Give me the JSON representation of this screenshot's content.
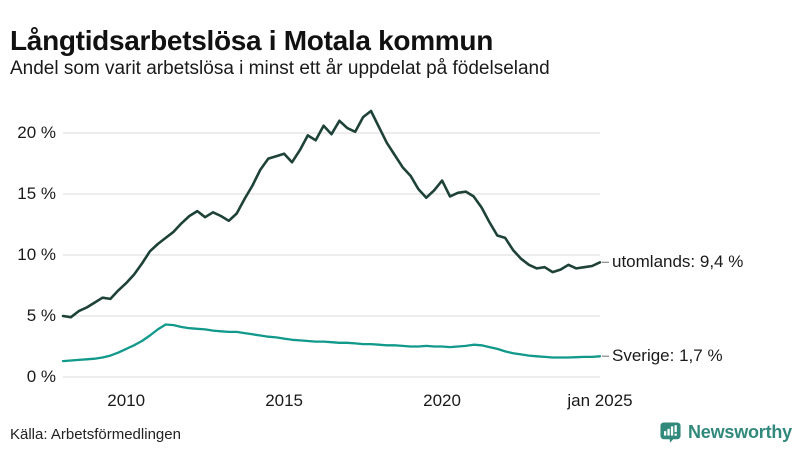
{
  "header": {
    "title": "Långtidsarbetslösa i Motala kommun",
    "subtitle": "Andel som varit arbetslösa i minst ett år uppdelat på födelseland"
  },
  "footer": {
    "source": "Källa: Arbetsförmedlingen",
    "brand": "Newsworthy"
  },
  "colors": {
    "utomlands_line": "#1e4238",
    "sverige_line": "#11998b",
    "grid": "#e2e2e2",
    "text": "#1a1a1a",
    "label_dash": "#999999",
    "brand_teal": "#31897c"
  },
  "chart_data": {
    "type": "line",
    "title": "Långtidsarbetslösa i Motala kommun",
    "subtitle": "Andel som varit arbetslösa i minst ett år uppdelat på födelseland",
    "xlabel": "",
    "ylabel": "",
    "xlim": [
      2008,
      2025
    ],
    "ylim": [
      0,
      22.4
    ],
    "grid": "horizontal",
    "legend_position": "end-of-line-labels",
    "y_ticks": [
      {
        "label": "0 %",
        "value": 0
      },
      {
        "label": "5 %",
        "value": 5
      },
      {
        "label": "10 %",
        "value": 10
      },
      {
        "label": "15 %",
        "value": 15
      },
      {
        "label": "20 %",
        "value": 20
      }
    ],
    "x_ticks": [
      {
        "label": "2010",
        "year": 2010
      },
      {
        "label": "2015",
        "year": 2015
      },
      {
        "label": "2020",
        "year": 2020
      },
      {
        "label": "jan 2025",
        "year": 2025
      }
    ],
    "x": [
      2008,
      2008.25,
      2008.5,
      2008.75,
      2009,
      2009.25,
      2009.5,
      2009.75,
      2010,
      2010.25,
      2010.5,
      2010.75,
      2011,
      2011.25,
      2011.5,
      2011.75,
      2012,
      2012.25,
      2012.5,
      2012.75,
      2013,
      2013.25,
      2013.5,
      2013.75,
      2014,
      2014.25,
      2014.5,
      2014.75,
      2015,
      2015.25,
      2015.5,
      2015.75,
      2016,
      2016.25,
      2016.5,
      2016.75,
      2017,
      2017.25,
      2017.5,
      2017.75,
      2018,
      2018.25,
      2018.5,
      2018.75,
      2019,
      2019.25,
      2019.5,
      2019.75,
      2020,
      2020.25,
      2020.5,
      2020.75,
      2021,
      2021.25,
      2021.5,
      2021.75,
      2022,
      2022.25,
      2022.5,
      2022.75,
      2023,
      2023.25,
      2023.5,
      2023.75,
      2024,
      2024.25,
      2024.5,
      2024.75,
      2025
    ],
    "series": [
      {
        "name": "utomlands",
        "end_label": "utomlands: 9,4 %",
        "end_value": "9,4 %",
        "color": "#1e4238",
        "values": [
          5.0,
          4.9,
          5.4,
          5.7,
          6.1,
          6.5,
          6.4,
          7.1,
          7.7,
          8.4,
          9.3,
          10.3,
          10.9,
          11.4,
          11.9,
          12.6,
          13.2,
          13.6,
          13.1,
          13.5,
          13.2,
          12.8,
          13.4,
          14.6,
          15.7,
          17.0,
          17.9,
          18.1,
          18.3,
          17.6,
          18.6,
          19.8,
          19.4,
          20.6,
          19.9,
          21.0,
          20.4,
          20.1,
          21.3,
          21.8,
          20.5,
          19.2,
          18.2,
          17.2,
          16.5,
          15.4,
          14.7,
          15.3,
          16.1,
          14.8,
          15.1,
          15.2,
          14.8,
          13.9,
          12.7,
          11.6,
          11.4,
          10.4,
          9.7,
          9.2,
          8.9,
          9.0,
          8.6,
          8.8,
          9.2,
          8.9,
          9.0,
          9.1,
          9.4
        ]
      },
      {
        "name": "Sverige",
        "end_label": "Sverige: 1,7 %",
        "end_value": "1,7 %",
        "color": "#11998b",
        "values": [
          1.3,
          1.35,
          1.4,
          1.45,
          1.5,
          1.6,
          1.75,
          2.0,
          2.3,
          2.6,
          2.95,
          3.4,
          3.9,
          4.3,
          4.25,
          4.1,
          4.0,
          3.95,
          3.9,
          3.8,
          3.75,
          3.7,
          3.7,
          3.6,
          3.5,
          3.4,
          3.3,
          3.25,
          3.15,
          3.05,
          3.0,
          2.95,
          2.9,
          2.9,
          2.85,
          2.8,
          2.8,
          2.75,
          2.7,
          2.7,
          2.65,
          2.6,
          2.6,
          2.55,
          2.5,
          2.5,
          2.55,
          2.5,
          2.5,
          2.45,
          2.5,
          2.55,
          2.65,
          2.6,
          2.45,
          2.3,
          2.1,
          1.95,
          1.85,
          1.75,
          1.7,
          1.65,
          1.6,
          1.6,
          1.6,
          1.62,
          1.65,
          1.65,
          1.7
        ]
      }
    ]
  }
}
